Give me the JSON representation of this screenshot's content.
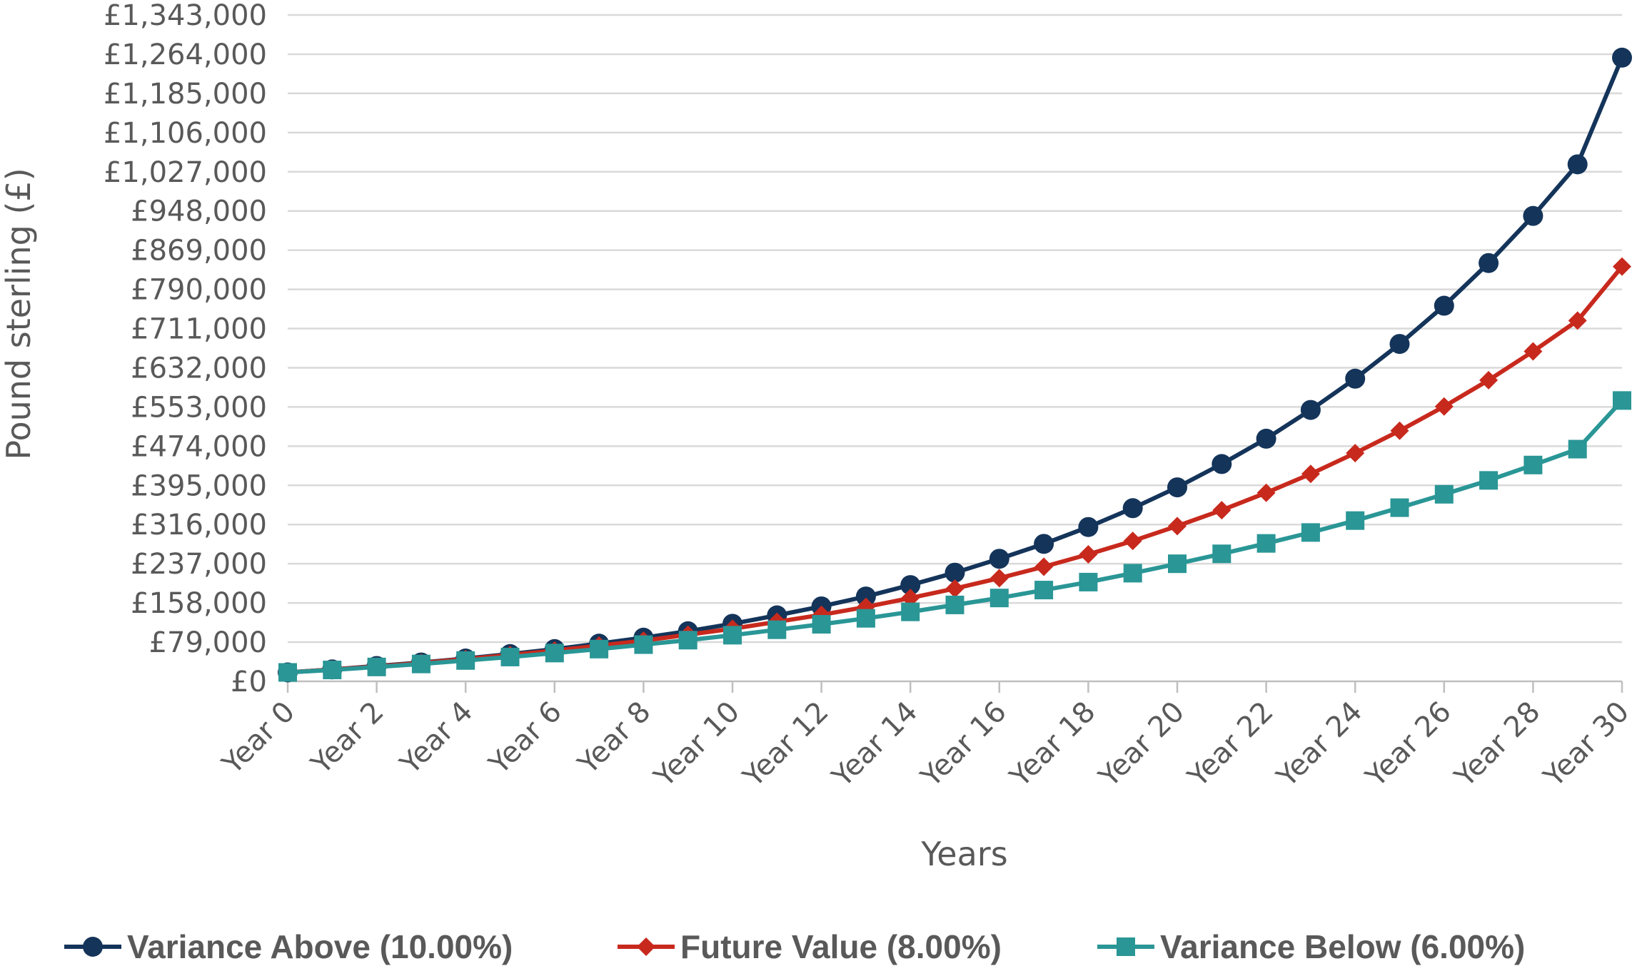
{
  "chart_data": {
    "type": "line",
    "xlabel": "Years",
    "ylabel": "Pound sterling (£)",
    "ylim": [
      0,
      1343000
    ],
    "y_ticks": [
      "£0",
      "£79,000",
      "£158,000",
      "£237,000",
      "£316,000",
      "£395,000",
      "£474,000",
      "£553,000",
      "£632,000",
      "£711,000",
      "£790,000",
      "£869,000",
      "£948,000",
      "£1,027,000",
      "£1,106,000",
      "£1,185,000",
      "£1,264,000",
      "£1,343,000"
    ],
    "y_tick_values": [
      0,
      79000,
      158000,
      237000,
      316000,
      395000,
      474000,
      553000,
      632000,
      711000,
      790000,
      869000,
      948000,
      1027000,
      1106000,
      1185000,
      1264000,
      1343000
    ],
    "x_tick_labels": [
      "Year 0",
      "Year 2",
      "Year 4",
      "Year 6",
      "Year 8",
      "Year 10",
      "Year 12",
      "Year 14",
      "Year 16",
      "Year 18",
      "Year 20",
      "Year 22",
      "Year 24",
      "Year 26",
      "Year 28",
      "Year 30"
    ],
    "x": [
      0,
      1,
      2,
      3,
      4,
      5,
      6,
      7,
      8,
      9,
      10,
      11,
      12,
      13,
      14,
      15,
      16,
      17,
      18,
      19,
      20,
      21,
      22,
      23,
      24,
      25,
      26,
      27,
      28,
      29,
      30
    ],
    "grid": true,
    "legend_position": "bottom",
    "series": [
      {
        "name": "Variance Above (10.00%)",
        "color": "#14345a",
        "marker": "circle",
        "values": [
          18000,
          24000,
          31000,
          38000,
          46000,
          55000,
          65000,
          76000,
          88000,
          101000,
          116000,
          133000,
          151000,
          171000,
          194000,
          219000,
          247000,
          277000,
          311000,
          349000,
          391000,
          438000,
          489000,
          547000,
          610000,
          680000,
          757000,
          843000,
          938000,
          1042000,
          1257000
        ]
      },
      {
        "name": "Future Value (8.00%)",
        "color": "#c8291d",
        "marker": "diamond",
        "values": [
          18000,
          24000,
          30000,
          37000,
          45000,
          53000,
          62000,
          72000,
          82000,
          94000,
          106000,
          120000,
          134000,
          150000,
          168000,
          187000,
          208000,
          231000,
          256000,
          283000,
          313000,
          345000,
          380000,
          418000,
          460000,
          505000,
          554000,
          607000,
          665000,
          727000,
          836000
        ]
      },
      {
        "name": "Variance Below (6.00%)",
        "color": "#2a9696",
        "marker": "square",
        "values": [
          18000,
          23000,
          29000,
          35000,
          42000,
          49000,
          57000,
          65000,
          74000,
          83000,
          93000,
          104000,
          115000,
          127000,
          140000,
          154000,
          168000,
          184000,
          200000,
          218000,
          237000,
          257000,
          278000,
          300000,
          324000,
          350000,
          377000,
          405000,
          436000,
          468000,
          566000
        ]
      }
    ]
  }
}
